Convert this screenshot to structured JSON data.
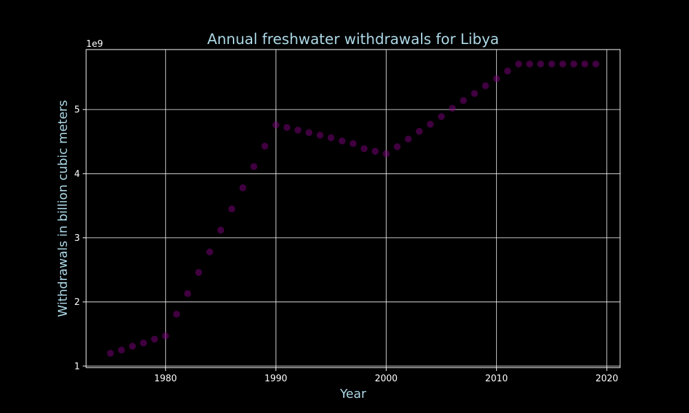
{
  "colors": {
    "background": "#000000",
    "text_accent": "#add8e6",
    "tick_text": "#ffffff",
    "grid": "#ffffff",
    "axes": "#ffffff",
    "marker": "#800080"
  },
  "chart_data": {
    "type": "scatter",
    "title": "Annual freshwater withdrawals for Libya",
    "xlabel": "Year",
    "ylabel": "Withdrawals in billion cubic meters",
    "y_offset_label": "1e9",
    "xlim": [
      1972.8,
      2021.2
    ],
    "ylim": [
      0.977,
      5.935
    ],
    "x_ticks": [
      1980,
      1990,
      2000,
      2010,
      2020
    ],
    "x_tick_labels": [
      "1980",
      "1990",
      "2000",
      "2010",
      "2020"
    ],
    "y_ticks": [
      1,
      2,
      3,
      4,
      5
    ],
    "y_tick_labels": [
      "1",
      "2",
      "3",
      "4",
      "5"
    ],
    "grid": true,
    "legend": "none",
    "x": [
      1975,
      1976,
      1977,
      1978,
      1979,
      1980,
      1981,
      1982,
      1983,
      1984,
      1985,
      1986,
      1987,
      1988,
      1989,
      1990,
      1991,
      1992,
      1993,
      1994,
      1995,
      1996,
      1997,
      1998,
      1999,
      2000,
      2001,
      2002,
      2003,
      2004,
      2005,
      2006,
      2007,
      2008,
      2009,
      2010,
      2011,
      2012,
      2013,
      2014,
      2015,
      2016,
      2017,
      2018,
      2019
    ],
    "y": [
      1.2,
      1.25,
      1.31,
      1.36,
      1.42,
      1.47,
      1.81,
      2.13,
      2.46,
      2.78,
      3.12,
      3.45,
      3.78,
      4.11,
      4.43,
      4.76,
      4.72,
      4.68,
      4.64,
      4.6,
      4.56,
      4.51,
      4.47,
      4.39,
      4.35,
      4.31,
      4.42,
      4.54,
      4.66,
      4.77,
      4.89,
      5.02,
      5.14,
      5.25,
      5.37,
      5.48,
      5.6,
      5.71,
      5.71,
      5.71,
      5.71,
      5.71,
      5.71,
      5.71,
      5.71
    ]
  }
}
